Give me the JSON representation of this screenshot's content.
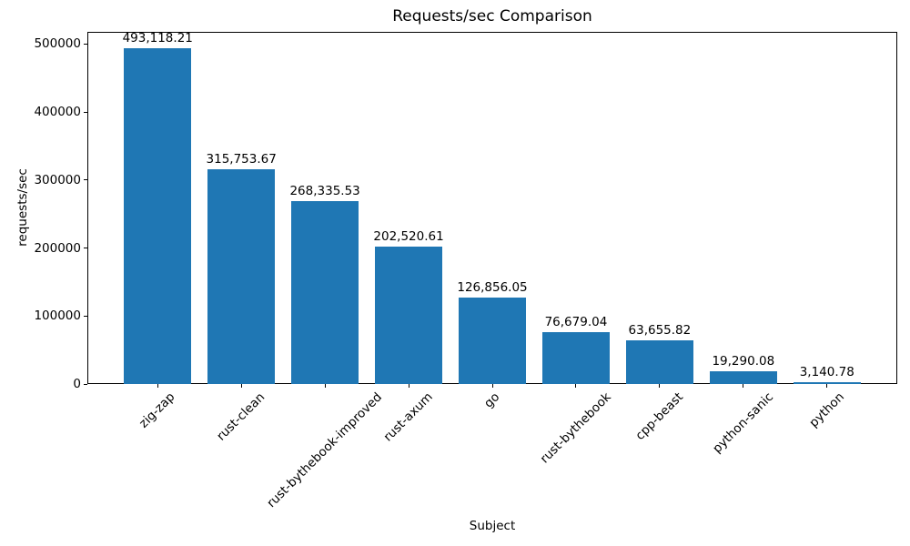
{
  "chart_data": {
    "type": "bar",
    "title": "Requests/sec Comparison",
    "xlabel": "Subject",
    "ylabel": "requests/sec",
    "categories": [
      "zig-zap",
      "rust-clean",
      "rust-bythebook-improved",
      "rust-axum",
      "go",
      "rust-bythebook",
      "cpp-beast",
      "python-sanic",
      "python"
    ],
    "values": [
      493118.21,
      315753.67,
      268335.53,
      202520.61,
      126856.05,
      76679.04,
      63655.82,
      19290.08,
      3140.78
    ],
    "value_labels": [
      "493,118.21",
      "315,753.67",
      "268,335.53",
      "202,520.61",
      "126,856.05",
      "76,679.04",
      "63,655.82",
      "19,290.08",
      "3,140.78"
    ],
    "yticks": [
      0,
      100000,
      200000,
      300000,
      400000,
      500000
    ],
    "ytick_labels": [
      "0",
      "100000",
      "200000",
      "300000",
      "400000",
      "500000"
    ],
    "ylim": [
      0,
      517774
    ],
    "bar_color": "#1f77b4",
    "grid": false,
    "legend": null,
    "x_tick_rotation_deg": 45
  }
}
